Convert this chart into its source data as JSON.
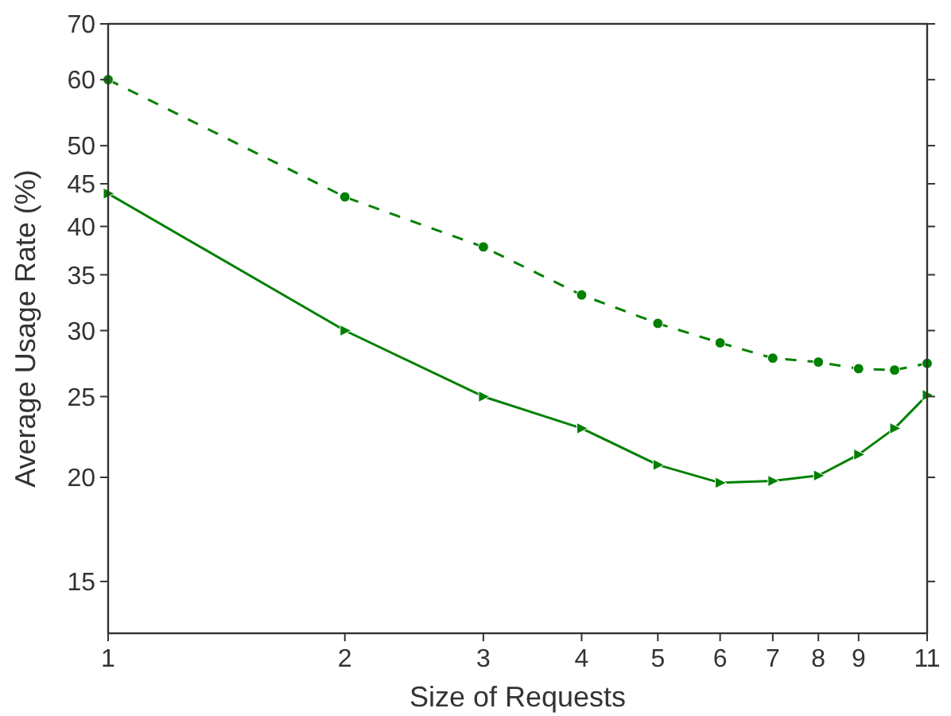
{
  "chart_data": {
    "type": "line",
    "xlabel": "Size of Requests",
    "ylabel": "Average Usage Rate (%)",
    "log": "xy",
    "grid": false,
    "x": [
      1,
      2,
      3,
      4,
      5,
      6,
      7,
      8,
      9,
      10,
      11
    ],
    "xlim": [
      1,
      11
    ],
    "xticks": [
      1,
      2,
      3,
      4,
      5,
      6,
      7,
      8,
      9,
      11
    ],
    "ylim": [
      13,
      70
    ],
    "yticks": [
      15,
      20,
      25,
      30,
      35,
      40,
      45,
      50,
      60,
      70
    ],
    "series": [
      {
        "color": "#008000",
        "line_style": "dashed",
        "marker": "circle",
        "values": [
          60,
          43.4,
          37.8,
          33.1,
          30.6,
          29.0,
          27.8,
          27.5,
          27.0,
          26.9,
          27.4
        ]
      },
      {
        "color": "#008000",
        "line_style": "solid",
        "marker": "triangle",
        "values": [
          43.8,
          30,
          25,
          22.9,
          20.7,
          19.7,
          19.8,
          20.1,
          21.3,
          22.9,
          25.1
        ]
      }
    ]
  }
}
